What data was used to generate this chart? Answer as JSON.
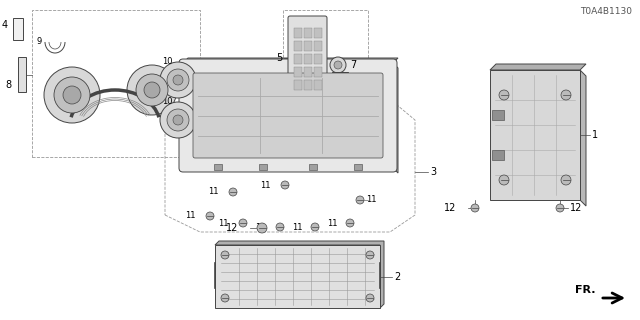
{
  "background_color": "#ffffff",
  "part_number": "T0A4B1130",
  "line_color": "#444444",
  "gray_fill": "#d8d8d8",
  "light_fill": "#f0f0f0",
  "screw_color": "#555555",
  "dashed_color": "#999999"
}
